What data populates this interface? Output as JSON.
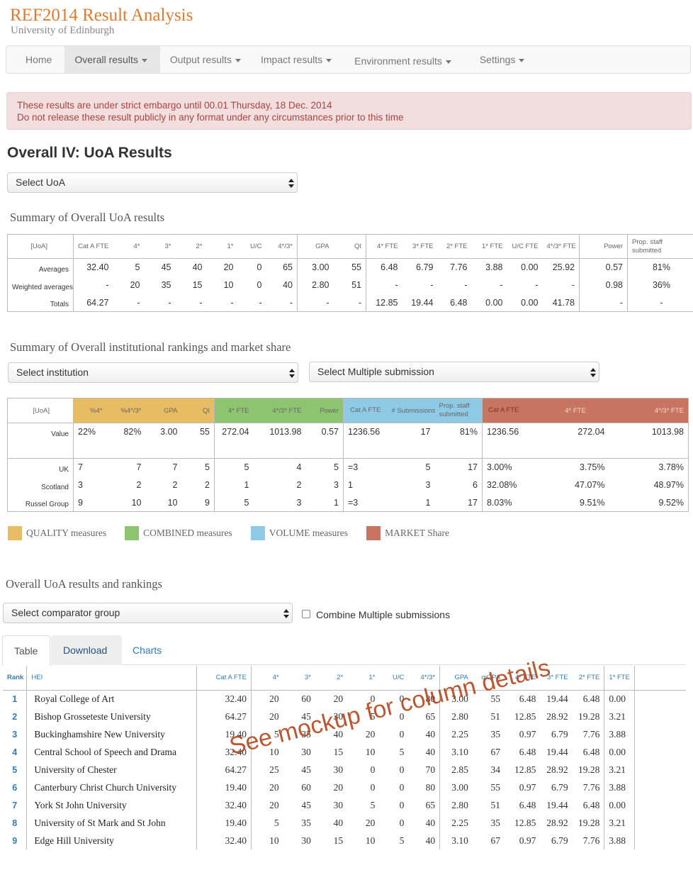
{
  "app": {
    "title": "REF2014 Result Analysis",
    "subtitle": "University of Edinburgh"
  },
  "nav": [
    {
      "label": "Home"
    },
    {
      "label": "Overall results"
    },
    {
      "label": "Output results"
    },
    {
      "label": "Impact results"
    },
    {
      "label": "Environment results"
    },
    {
      "label": "Settings"
    }
  ],
  "alert": {
    "line1": "These results are under strict embargo until 00.01 Thursday, 18 Dec. 2014",
    "line2": "Do not release these result publicly in any format under any circumstances prior to this time"
  },
  "page_title": "Overall IV: UoA Results",
  "uoa_select": "Select UoA",
  "summary1": {
    "title": "Summary of Overall UoA results",
    "headers": [
      "[UoA]",
      "Cat A FTE",
      "4*",
      "3*",
      "2*",
      "1*",
      "U/C",
      "4*/3*",
      "GPA",
      "QI",
      "4* FTE",
      "3* FTE",
      "2* FTE",
      "1* FTE",
      "U/C FTE",
      "4*/3* FTE",
      "Power",
      "Prop. staff submitted"
    ],
    "rows": [
      {
        "label": "Averages",
        "cells": [
          "32.40",
          "5",
          "45",
          "40",
          "20",
          "0",
          "65",
          "3.00",
          "55",
          "6.48",
          "6.79",
          "7.76",
          "3.88",
          "0.00",
          "25.92",
          "0.57",
          "81%"
        ]
      },
      {
        "label": "Weighted averages",
        "cells": [
          "-",
          "20",
          "35",
          "15",
          "10",
          "0",
          "40",
          "2.80",
          "51",
          "-",
          "-",
          "-",
          "-",
          "-",
          "-",
          "0.98",
          "36%"
        ]
      },
      {
        "label": "Totals",
        "cells": [
          "64.27",
          "-",
          "-",
          "-",
          "-",
          "-",
          "-",
          "-",
          "-",
          "12.85",
          "19.44",
          "6.48",
          "0.00",
          "0.00",
          "41.78",
          "-",
          "-"
        ]
      }
    ]
  },
  "summary2": {
    "title": "Summary of Overall institutional rankings and market share",
    "select_institution": "Select institution",
    "select_multiple": "Select Multiple submission",
    "headers": [
      "[UoA]",
      "%4*",
      "%4*/3*",
      "GPA",
      "QI",
      "4* FTE",
      "4*/3* FTE",
      "Power",
      "Cat A FTE",
      "# Submissions",
      "Prop. staff submitted",
      "Cat A FTE",
      "4* FTE",
      "4*/3* FTE"
    ],
    "rows": [
      {
        "label": "Value",
        "cells": [
          "22%",
          "82%",
          "3.00",
          "55",
          "272.04",
          "1013.98",
          "0.57",
          "1236.56",
          "17",
          "81%",
          "1236.56",
          "272.04",
          "1013.98"
        ]
      },
      {
        "label": "",
        "cells": [
          "",
          "",
          "",
          "",
          "",
          "",
          "",
          "",
          "",
          "",
          "",
          "",
          ""
        ]
      },
      {
        "label": "UK",
        "cells": [
          "7",
          "7",
          "7",
          "5",
          "5",
          "4",
          "5",
          "=3",
          "5",
          "17",
          "3.00%",
          "3.75%",
          "3.78%"
        ]
      },
      {
        "label": "Scotland",
        "cells": [
          "3",
          "2",
          "2",
          "2",
          "1",
          "2",
          "3",
          "1",
          "3",
          "6",
          "32.08%",
          "47.07%",
          "48.97%"
        ]
      },
      {
        "label": "Russel Group",
        "cells": [
          "9",
          "10",
          "10",
          "9",
          "5",
          "3",
          "1",
          "=3",
          "1",
          "17",
          "8.03%",
          "9.51%",
          "9.52%"
        ]
      }
    ],
    "legend": [
      {
        "label": "QUALITY measures",
        "color": "#e8bc62"
      },
      {
        "label": "COMBINED measures",
        "color": "#8ec46f"
      },
      {
        "label": "VOLUME measures",
        "color": "#8ecae6"
      },
      {
        "label": "MARKET Share",
        "color": "#c77561"
      }
    ]
  },
  "rankings": {
    "title": "Overall UoA results and rankings",
    "select_comparator": "Select comparator group",
    "combine_label": "Combine Multiple submissions",
    "tabs": [
      "Table",
      "Download",
      "Charts"
    ],
    "headers": [
      "Rank",
      "HEI",
      "Cat A FTE",
      "4*",
      "3*",
      "2*",
      "1*",
      "U/C",
      "4*/3*",
      "GPA",
      "qiGPA",
      "4* FTE",
      "3* FTE",
      "2* FTE",
      "1* FTE"
    ],
    "rows": [
      {
        "rank": "1",
        "hei": "Royal College of Art",
        "cells": [
          "32.40",
          "20",
          "60",
          "20",
          "0",
          "0",
          "80",
          "3.00",
          "55",
          "6.48",
          "19.44",
          "6.48",
          "0.00"
        ]
      },
      {
        "rank": "2",
        "hei": "Bishop Grosseteste University",
        "cells": [
          "64.27",
          "20",
          "45",
          "30",
          "5",
          "0",
          "65",
          "2.80",
          "51",
          "12.85",
          "28.92",
          "19.28",
          "3.21"
        ]
      },
      {
        "rank": "3",
        "hei": "Buckinghamshire New University",
        "cells": [
          "19.40",
          "5",
          "35",
          "40",
          "20",
          "0",
          "40",
          "2.25",
          "35",
          "0.97",
          "6.79",
          "7.76",
          "3.88"
        ]
      },
      {
        "rank": "4",
        "hei": "Central School of Speech and Drama",
        "cells": [
          "32.40",
          "10",
          "30",
          "15",
          "10",
          "5",
          "40",
          "3.10",
          "67",
          "6.48",
          "19.44",
          "6.48",
          "0.00"
        ]
      },
      {
        "rank": "5",
        "hei": "University of Chester",
        "cells": [
          "64.27",
          "25",
          "45",
          "30",
          "0",
          "0",
          "70",
          "2.85",
          "34",
          "12.85",
          "28.92",
          "19.28",
          "3.21"
        ]
      },
      {
        "rank": "6",
        "hei": "Canterbury Christ Church University",
        "cells": [
          "19.40",
          "20",
          "60",
          "20",
          "0",
          "0",
          "80",
          "3.00",
          "55",
          "0.97",
          "6.79",
          "7.76",
          "3.88"
        ]
      },
      {
        "rank": "7",
        "hei": "York St John University",
        "cells": [
          "32.40",
          "20",
          "45",
          "30",
          "5",
          "0",
          "65",
          "2.80",
          "51",
          "6.48",
          "19.44",
          "6.48",
          "0.00"
        ]
      },
      {
        "rank": "8",
        "hei": "University of St Mark and St John",
        "cells": [
          "19.40",
          "5",
          "35",
          "40",
          "20",
          "0",
          "40",
          "2.25",
          "35",
          "12.85",
          "28.92",
          "19.28",
          "3.21"
        ]
      },
      {
        "rank": "9",
        "hei": "Edge Hill University",
        "cells": [
          "32.40",
          "10",
          "30",
          "15",
          "10",
          "5",
          "40",
          "3.10",
          "67",
          "0.97",
          "6.79",
          "7.76",
          "3.88"
        ]
      }
    ]
  },
  "watermark": "See mockup for column details"
}
